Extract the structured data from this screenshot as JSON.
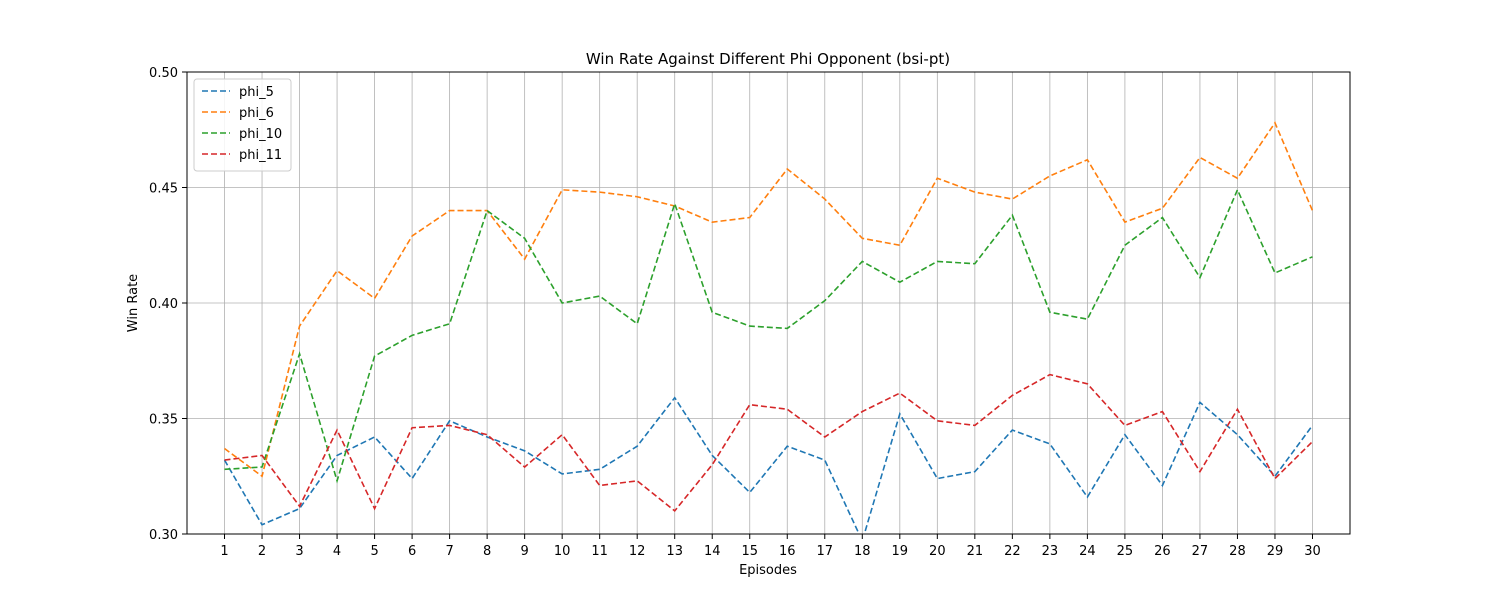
{
  "chart_data": {
    "type": "line",
    "title": "Win Rate Against Different Phi Opponent (bsi-pt)",
    "xlabel": "Episodes",
    "ylabel": "Win Rate",
    "x": [
      1,
      2,
      3,
      4,
      5,
      6,
      7,
      8,
      9,
      10,
      11,
      12,
      13,
      14,
      15,
      16,
      17,
      18,
      19,
      20,
      21,
      22,
      23,
      24,
      25,
      26,
      27,
      28,
      29,
      30
    ],
    "xlim": [
      0,
      31
    ],
    "ylim": [
      0.3,
      0.5
    ],
    "yticks": [
      "0.30",
      "0.35",
      "0.40",
      "0.45",
      "0.50"
    ],
    "grid": true,
    "legend_position": "top-left",
    "line_style": "dashed",
    "series": [
      {
        "name": "phi_5",
        "color": "#1f77b4",
        "values": [
          0.332,
          0.304,
          0.311,
          0.334,
          0.342,
          0.324,
          0.349,
          0.342,
          0.336,
          0.326,
          0.328,
          0.338,
          0.359,
          0.334,
          0.318,
          0.338,
          0.332,
          0.297,
          0.352,
          0.324,
          0.327,
          0.345,
          0.339,
          0.316,
          0.343,
          0.321,
          0.357,
          0.343,
          0.325,
          0.347
        ]
      },
      {
        "name": "phi_6",
        "color": "#ff7f0e",
        "values": [
          0.337,
          0.325,
          0.39,
          0.414,
          0.402,
          0.429,
          0.44,
          0.44,
          0.419,
          0.449,
          0.448,
          0.446,
          0.442,
          0.435,
          0.437,
          0.458,
          0.445,
          0.428,
          0.425,
          0.454,
          0.448,
          0.445,
          0.455,
          0.462,
          0.435,
          0.441,
          0.463,
          0.454,
          0.478,
          0.44
        ]
      },
      {
        "name": "phi_10",
        "color": "#2ca02c",
        "values": [
          0.328,
          0.329,
          0.378,
          0.323,
          0.377,
          0.386,
          0.391,
          0.44,
          0.428,
          0.4,
          0.403,
          0.391,
          0.443,
          0.396,
          0.39,
          0.389,
          0.401,
          0.418,
          0.409,
          0.418,
          0.417,
          0.438,
          0.396,
          0.393,
          0.425,
          0.437,
          0.411,
          0.449,
          0.413,
          0.42
        ]
      },
      {
        "name": "phi_11",
        "color": "#d62728",
        "values": [
          0.332,
          0.334,
          0.312,
          0.345,
          0.311,
          0.346,
          0.347,
          0.343,
          0.329,
          0.343,
          0.321,
          0.323,
          0.31,
          0.33,
          0.356,
          0.354,
          0.342,
          0.353,
          0.361,
          0.349,
          0.347,
          0.36,
          0.369,
          0.365,
          0.347,
          0.353,
          0.327,
          0.354,
          0.324,
          0.34
        ]
      }
    ]
  }
}
